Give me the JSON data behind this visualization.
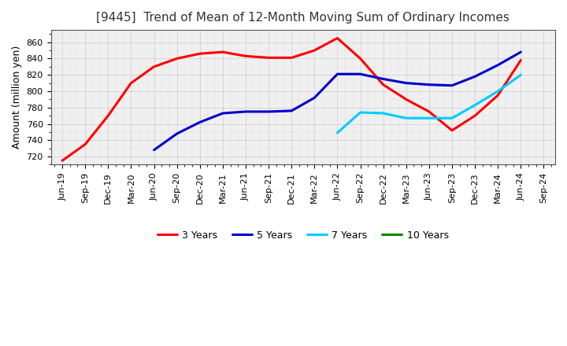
{
  "title": "[9445]  Trend of Mean of 12-Month Moving Sum of Ordinary Incomes",
  "ylabel": "Amount (million yen)",
  "plot_bg": "#f0f0f0",
  "fig_bg": "#ffffff",
  "grid_color": "#999999",
  "x_labels": [
    "Jun-19",
    "Sep-19",
    "Dec-19",
    "Mar-20",
    "Jun-20",
    "Sep-20",
    "Dec-20",
    "Mar-21",
    "Jun-21",
    "Sep-21",
    "Dec-21",
    "Mar-22",
    "Jun-22",
    "Sep-22",
    "Dec-22",
    "Mar-23",
    "Jun-23",
    "Sep-23",
    "Dec-23",
    "Mar-24",
    "Jun-24",
    "Sep-24"
  ],
  "series": [
    {
      "name": "3 Years",
      "color": "#ff0000",
      "values": [
        715,
        735,
        770,
        810,
        830,
        840,
        846,
        848,
        843,
        841,
        841,
        850,
        865,
        840,
        808,
        790,
        775,
        752,
        770,
        795,
        838,
        null
      ]
    },
    {
      "name": "5 Years",
      "color": "#0000cc",
      "values": [
        null,
        null,
        null,
        null,
        728,
        748,
        762,
        773,
        775,
        775,
        776,
        792,
        821,
        821,
        815,
        810,
        808,
        807,
        818,
        832,
        848,
        null
      ]
    },
    {
      "name": "7 Years",
      "color": "#00ccff",
      "values": [
        null,
        null,
        null,
        null,
        null,
        null,
        null,
        null,
        null,
        null,
        null,
        null,
        749,
        774,
        773,
        767,
        767,
        767,
        783,
        800,
        820,
        null
      ]
    },
    {
      "name": "10 Years",
      "color": "#008800",
      "values": [
        null,
        null,
        null,
        null,
        null,
        null,
        null,
        null,
        null,
        null,
        null,
        null,
        null,
        null,
        null,
        null,
        null,
        null,
        null,
        null,
        null,
        null
      ]
    }
  ],
  "ylim": [
    710,
    875
  ],
  "yticks": [
    720,
    740,
    760,
    780,
    800,
    820,
    840,
    860
  ],
  "linewidth": 2.2,
  "title_fontsize": 11,
  "tick_fontsize": 8,
  "ylabel_fontsize": 9,
  "legend_fontsize": 9
}
